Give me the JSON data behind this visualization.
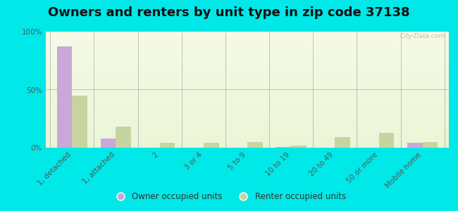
{
  "title": "Owners and renters by unit type in zip code 37138",
  "categories": [
    "1, detached",
    "1, attached",
    "2",
    "3 or 4",
    "5 to 9",
    "10 to 19",
    "20 to 49",
    "50 or more",
    "Mobile home"
  ],
  "owner_values": [
    87,
    8,
    0,
    0,
    0,
    0.5,
    0,
    0,
    4
  ],
  "renter_values": [
    45,
    18,
    4,
    4,
    5,
    2,
    9,
    13,
    5
  ],
  "owner_color": "#c8a8d8",
  "renter_color": "#c8d4a0",
  "background_color": "#00e8e8",
  "ylim": [
    0,
    100
  ],
  "yticks": [
    0,
    50,
    100
  ],
  "ytick_labels": [
    "0%",
    "50%",
    "100%"
  ],
  "legend_owner": "Owner occupied units",
  "legend_renter": "Renter occupied units",
  "watermark": "City-Data.com",
  "title_fontsize": 13,
  "tick_fontsize": 7.5
}
